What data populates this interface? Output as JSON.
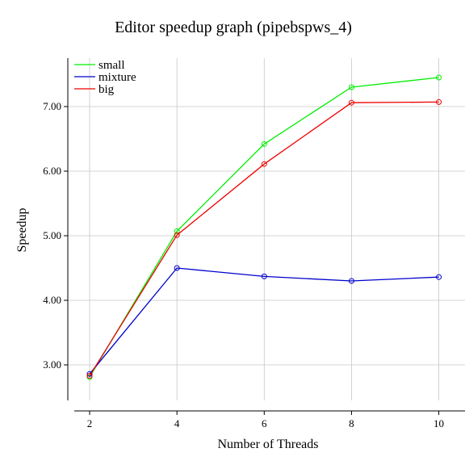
{
  "chart_data": {
    "type": "line",
    "title": "Editor speedup graph (pipebspws_4)",
    "xlabel": "Number of Threads",
    "ylabel": "Speedup",
    "x": [
      2,
      4,
      6,
      8,
      10
    ],
    "x_tick_labels": [
      "2",
      "4",
      "6",
      "8",
      "10"
    ],
    "y_tick_values": [
      3.0,
      4.0,
      5.0,
      6.0,
      7.0
    ],
    "y_tick_labels": [
      "3.00",
      "4.00",
      "5.00",
      "6.00",
      "7.00"
    ],
    "xlim": [
      1.5,
      10.6
    ],
    "ylim": [
      2.45,
      7.75
    ],
    "grid": true,
    "legend_position": "top-left",
    "series": [
      {
        "name": "small",
        "color": "#00ee00",
        "values": [
          2.81,
          5.07,
          6.42,
          7.3,
          7.45
        ]
      },
      {
        "name": "mixture",
        "color": "#0000cc",
        "values": [
          2.86,
          4.5,
          4.37,
          4.3,
          4.36
        ]
      },
      {
        "name": "big",
        "color": "#ee0000",
        "values": [
          2.83,
          5.01,
          6.11,
          7.06,
          7.07
        ]
      }
    ]
  }
}
